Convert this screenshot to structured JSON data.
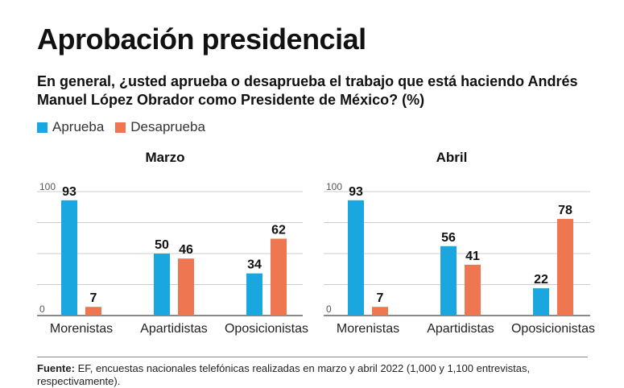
{
  "title": "Aprobación presidencial",
  "subtitle": "En general, ¿usted aprueba o desaprueba el trabajo que está haciendo Andrés Manuel López Obrador como Presidente de México? (%)",
  "legend": [
    {
      "label": "Aprueba",
      "color": "#1aa7e0"
    },
    {
      "label": "Desaprueba",
      "color": "#ee7650"
    }
  ],
  "chart_data": [
    {
      "type": "bar",
      "title": "Marzo",
      "categories": [
        "Morenistas",
        "Apartidistas",
        "Oposicionistas"
      ],
      "series": [
        {
          "name": "Aprueba",
          "values": [
            93,
            50,
            34
          ],
          "color": "#1aa7e0"
        },
        {
          "name": "Desaprueba",
          "values": [
            7,
            46,
            62
          ],
          "color": "#ee7650"
        }
      ],
      "ylim": [
        0,
        100
      ],
      "yticks": [
        "0",
        "100"
      ],
      "grid": true
    },
    {
      "type": "bar",
      "title": "Abril",
      "categories": [
        "Morenistas",
        "Apartidistas",
        "Oposicionistas"
      ],
      "series": [
        {
          "name": "Aprueba",
          "values": [
            93,
            56,
            22
          ],
          "color": "#1aa7e0"
        },
        {
          "name": "Desaprueba",
          "values": [
            7,
            41,
            78
          ],
          "color": "#ee7650"
        }
      ],
      "ylim": [
        0,
        100
      ],
      "yticks": [
        "0",
        "100"
      ],
      "grid": true
    }
  ],
  "footer": {
    "label": "Fuente:",
    "text": "EF, encuestas nacionales telefónicas realizadas en marzo y abril 2022 (1,000 y 1,100 entrevistas, respectivamente)."
  }
}
